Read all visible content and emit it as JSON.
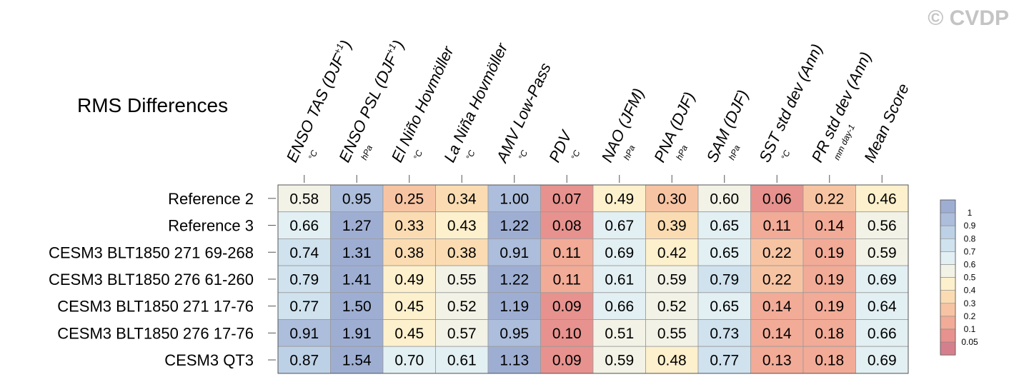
{
  "watermark": "© CVDP",
  "chart_data": {
    "type": "heatmap",
    "title": "RMS Differences",
    "columns": [
      {
        "label": "ENSO TAS (DJF+1)",
        "main": "ENSO TAS (DJF",
        "sup": "+1",
        "close": ")",
        "unit": "°C"
      },
      {
        "label": "ENSO PSL (DJF+1)",
        "main": "ENSO PSL (DJF",
        "sup": "+1",
        "close": ")",
        "unit": "hPa"
      },
      {
        "label": "El Niño Hovmöller",
        "main": "El Niño Hovmöller",
        "sup": "",
        "close": "",
        "unit": "°C"
      },
      {
        "label": "La Niña Hovmöller",
        "main": "La Niña Hovmöller",
        "sup": "",
        "close": "",
        "unit": "°C"
      },
      {
        "label": "AMV Low-Pass",
        "main": "AMV Low-Pass",
        "sup": "",
        "close": "",
        "unit": "°C"
      },
      {
        "label": "PDV",
        "main": "PDV",
        "sup": "",
        "close": "",
        "unit": "°C"
      },
      {
        "label": "NAO (JFM)",
        "main": "NAO (JFM)",
        "sup": "",
        "close": "",
        "unit": "hPa"
      },
      {
        "label": "PNA (DJF)",
        "main": "PNA (DJF)",
        "sup": "",
        "close": "",
        "unit": "hPa"
      },
      {
        "label": "SAM (DJF)",
        "main": "SAM (DJF)",
        "sup": "",
        "close": "",
        "unit": "hPa"
      },
      {
        "label": "SST std dev (Ann)",
        "main": "SST std dev (Ann)",
        "sup": "",
        "close": "",
        "unit": "°C"
      },
      {
        "label": "PR std dev (Ann)",
        "main": "PR std dev (Ann)",
        "sup": "",
        "close": "",
        "unit": "mm day-1"
      },
      {
        "label": "Mean Score",
        "main": "Mean Score",
        "sup": "",
        "close": "",
        "unit": ""
      }
    ],
    "rows": [
      {
        "name": "Reference 2",
        "values": [
          "0.58",
          "0.95",
          "0.25",
          "0.34",
          "1.00",
          "0.07",
          "0.49",
          "0.30",
          "0.60",
          "0.06",
          "0.22",
          "0.46"
        ]
      },
      {
        "name": "Reference 3",
        "values": [
          "0.66",
          "1.27",
          "0.33",
          "0.43",
          "1.22",
          "0.08",
          "0.67",
          "0.39",
          "0.65",
          "0.11",
          "0.14",
          "0.56"
        ]
      },
      {
        "name": "CESM3 BLT1850 271 69-268",
        "values": [
          "0.74",
          "1.31",
          "0.38",
          "0.38",
          "0.91",
          "0.11",
          "0.69",
          "0.42",
          "0.65",
          "0.22",
          "0.19",
          "0.59"
        ]
      },
      {
        "name": "CESM3 BLT1850 276 61-260",
        "values": [
          "0.79",
          "1.41",
          "0.49",
          "0.55",
          "1.22",
          "0.11",
          "0.61",
          "0.59",
          "0.79",
          "0.22",
          "0.19",
          "0.69"
        ]
      },
      {
        "name": "CESM3 BLT1850 271 17-76",
        "values": [
          "0.77",
          "1.50",
          "0.45",
          "0.52",
          "1.19",
          "0.09",
          "0.66",
          "0.52",
          "0.65",
          "0.14",
          "0.19",
          "0.64"
        ]
      },
      {
        "name": "CESM3 BLT1850 276 17-76",
        "values": [
          "0.91",
          "1.91",
          "0.45",
          "0.57",
          "0.95",
          "0.10",
          "0.51",
          "0.55",
          "0.73",
          "0.14",
          "0.18",
          "0.66"
        ]
      },
      {
        "name": "CESM3 QT3",
        "values": [
          "0.87",
          "1.54",
          "0.70",
          "0.61",
          "1.13",
          "0.09",
          "0.59",
          "0.48",
          "0.77",
          "0.13",
          "0.18",
          "0.69"
        ]
      }
    ],
    "legend": {
      "position": "right",
      "bins": [
        {
          "upper": "",
          "color": "#9eaed3"
        },
        {
          "upper": "1",
          "color": "#adbddc"
        },
        {
          "upper": "0.9",
          "color": "#bdd1e6"
        },
        {
          "upper": "0.8",
          "color": "#cfe2ee"
        },
        {
          "upper": "0.7",
          "color": "#e2eff3"
        },
        {
          "upper": "0.6",
          "color": "#f3f2e6"
        },
        {
          "upper": "0.5",
          "color": "#fdf0cc"
        },
        {
          "upper": "0.4",
          "color": "#fbdcb2"
        },
        {
          "upper": "0.3",
          "color": "#f7c4a3"
        },
        {
          "upper": "0.2",
          "color": "#f2ab97"
        },
        {
          "upper": "0.1",
          "color": "#e7928e"
        },
        {
          "upper": "0.05",
          "color": "#d67f8c"
        }
      ]
    }
  }
}
